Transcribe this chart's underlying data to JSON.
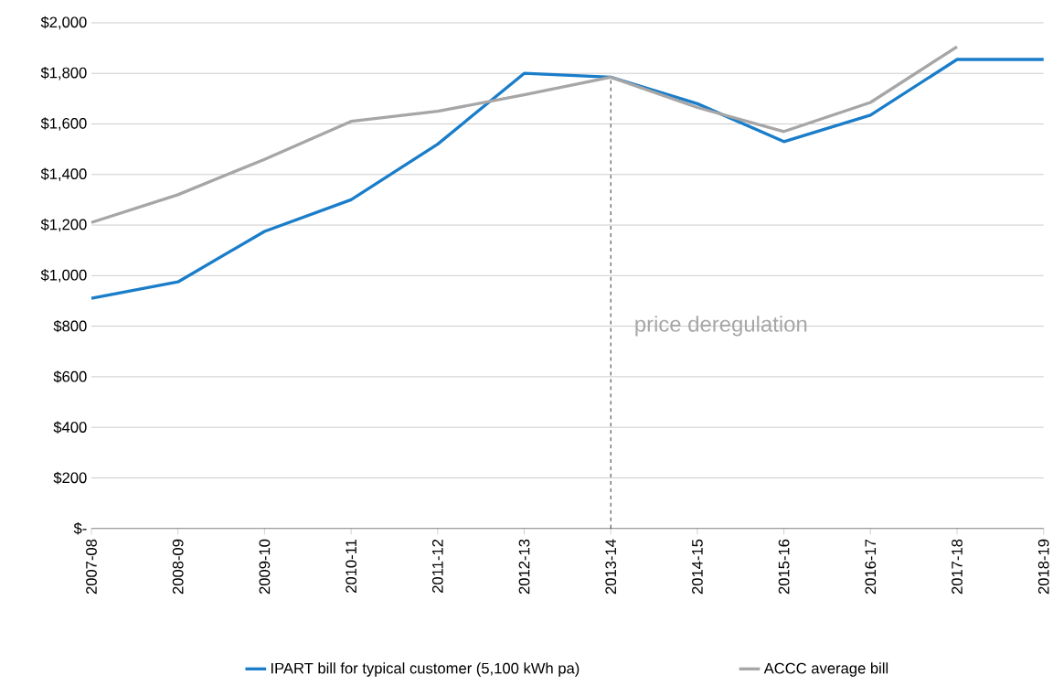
{
  "chart_data": {
    "type": "line",
    "categories": [
      "2007-08",
      "2008-09",
      "2009-10",
      "2010-11",
      "2011-12",
      "2012-13",
      "2013-14",
      "2014-15",
      "2015-16",
      "2016-17",
      "2017-18",
      "2018-19"
    ],
    "series": [
      {
        "name": "IPART bill for typical customer (5,100 kWh pa)",
        "color": "#1a7dc9",
        "values": [
          910,
          975,
          1175,
          1300,
          1520,
          1800,
          1785,
          1680,
          1530,
          1635,
          1855,
          1855
        ]
      },
      {
        "name": "ACCC average bill",
        "color": "#a6a6a6",
        "values": [
          1210,
          1320,
          1460,
          1610,
          1650,
          1715,
          1785,
          1665,
          1570,
          1685,
          1905,
          null
        ]
      }
    ],
    "ylim": [
      0,
      2000
    ],
    "yticks": [
      {
        "value": 0,
        "label": "$-"
      },
      {
        "value": 200,
        "label": "$200"
      },
      {
        "value": 400,
        "label": "$400"
      },
      {
        "value": 600,
        "label": "$600"
      },
      {
        "value": 800,
        "label": "$800"
      },
      {
        "value": 1000,
        "label": "$1,000"
      },
      {
        "value": 1200,
        "label": "$1,200"
      },
      {
        "value": 1400,
        "label": "$1,400"
      },
      {
        "value": 1600,
        "label": "$1,600"
      },
      {
        "value": 1800,
        "label": "$1,800"
      },
      {
        "value": 2000,
        "label": "$2,000"
      }
    ],
    "ref_lines": [
      {
        "axis": "x",
        "value": "2013-14",
        "label": "price deregulation",
        "color": "#000000",
        "line_style": "dashed"
      }
    ],
    "grid": "y",
    "legend": "bottom",
    "marker": "none",
    "line_style": "solid"
  }
}
